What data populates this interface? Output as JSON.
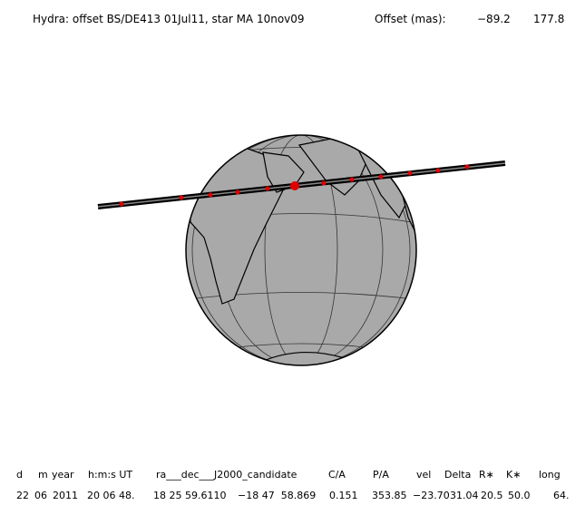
{
  "header": {
    "title": "Hydra: offset BS/DE413 01Jul11, star MA 10nov09",
    "offset_label": "Offset (mas):",
    "offset_x": "−89.2",
    "offset_y": "177.8"
  },
  "table": {
    "columns": [
      "d",
      "m",
      "year",
      "h:m:s UT",
      "ra___dec___J2000_candidate",
      "C/A",
      "P/A",
      "vel",
      "Delta",
      "R∗",
      "K∗",
      "long"
    ],
    "row": [
      "22",
      "06",
      "2011",
      "20 06 48.",
      "18 25 59.6110",
      "−18 47  58.869",
      "0.151",
      "353.85",
      "−23.70",
      "31.04",
      "20.5",
      "50.0",
      "64."
    ]
  }
}
